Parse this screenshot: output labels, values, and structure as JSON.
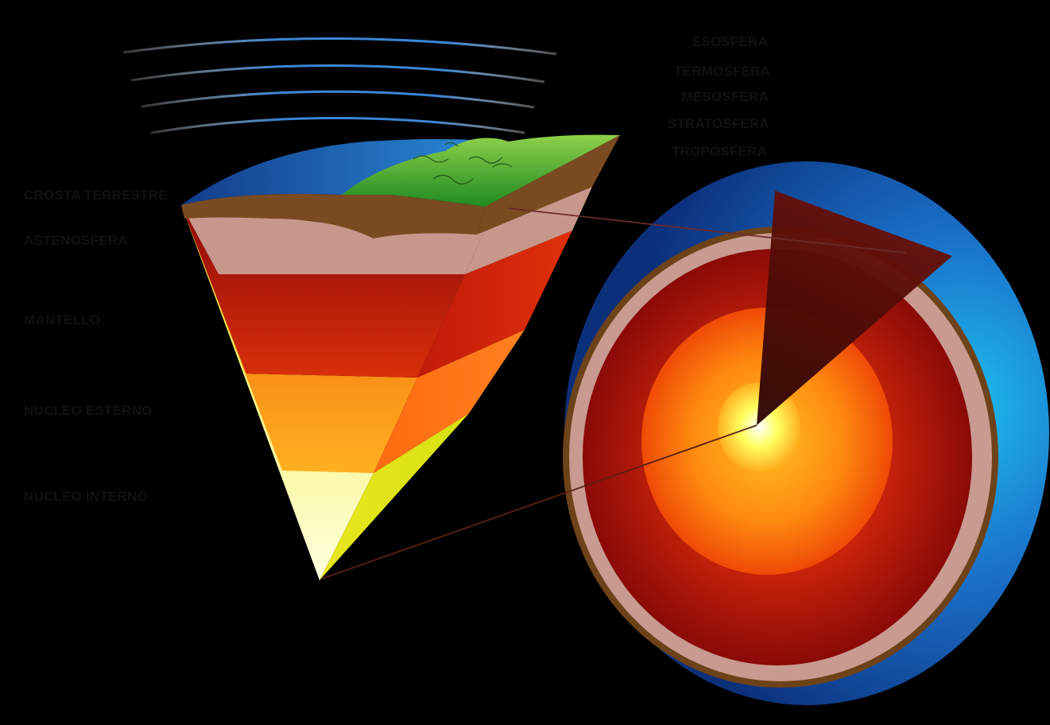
{
  "diagram": {
    "atmosphere_labels": [
      "ESOSFERA",
      "TERMOSFERA",
      "MESOSFERA",
      "STRATOSFERA",
      "TROPOSFERA"
    ],
    "interior_labels": [
      "CROSTA TERRESTRE",
      "ASTENOSFERA",
      "MANTELLO",
      "NUCLEO ESTERNO",
      "NUCLEO INTERNO"
    ]
  },
  "colors": {
    "label_line_red": "#d6202a",
    "label_line_blue": "#2c55a8",
    "ocean_blue": "#1f6fc9",
    "crust_brown": "#7a4a20",
    "mantle_red": "#b8140a",
    "outer_core_orange": "#ff7a10",
    "inner_core_yellow": "#f2f24a"
  }
}
